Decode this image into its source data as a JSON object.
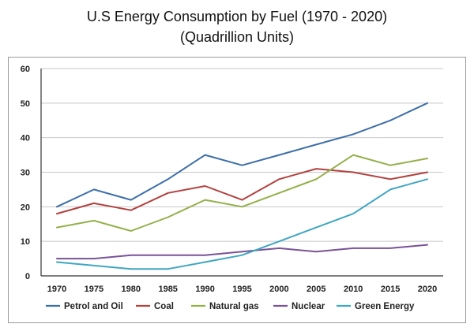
{
  "chart_data": {
    "type": "line",
    "title": "U.S Energy Consumption by Fuel (1970 - 2020)",
    "subtitle": "(Quadrillion Units)",
    "xlabel": "",
    "ylabel": "",
    "categories": [
      "1970",
      "1975",
      "1980",
      "1985",
      "1990",
      "1995",
      "2000",
      "2005",
      "2010",
      "2015",
      "2020"
    ],
    "ylim": [
      0,
      60
    ],
    "yticks": [
      "0",
      "10",
      "20",
      "30",
      "40",
      "50",
      "60"
    ],
    "grid": true,
    "legend": "bottom",
    "series": [
      {
        "name": "Petrol and Oil",
        "color": "#3d6fa7",
        "values": [
          20,
          25,
          22,
          28,
          35,
          32,
          35,
          38,
          41,
          45,
          50
        ]
      },
      {
        "name": "Coal",
        "color": "#b3413e",
        "values": [
          18,
          21,
          19,
          24,
          26,
          22,
          28,
          31,
          30,
          28,
          30
        ]
      },
      {
        "name": "Natural gas",
        "color": "#94b04a",
        "values": [
          14,
          16,
          13,
          17,
          22,
          20,
          24,
          28,
          35,
          32,
          34
        ]
      },
      {
        "name": "Nuclear",
        "color": "#7a5297",
        "values": [
          5,
          5,
          6,
          6,
          6,
          7,
          8,
          7,
          8,
          8,
          9
        ]
      },
      {
        "name": "Green Energy",
        "color": "#3fa6c0",
        "values": [
          4,
          3,
          2,
          2,
          4,
          6,
          10,
          14,
          18,
          25,
          28
        ]
      }
    ]
  }
}
